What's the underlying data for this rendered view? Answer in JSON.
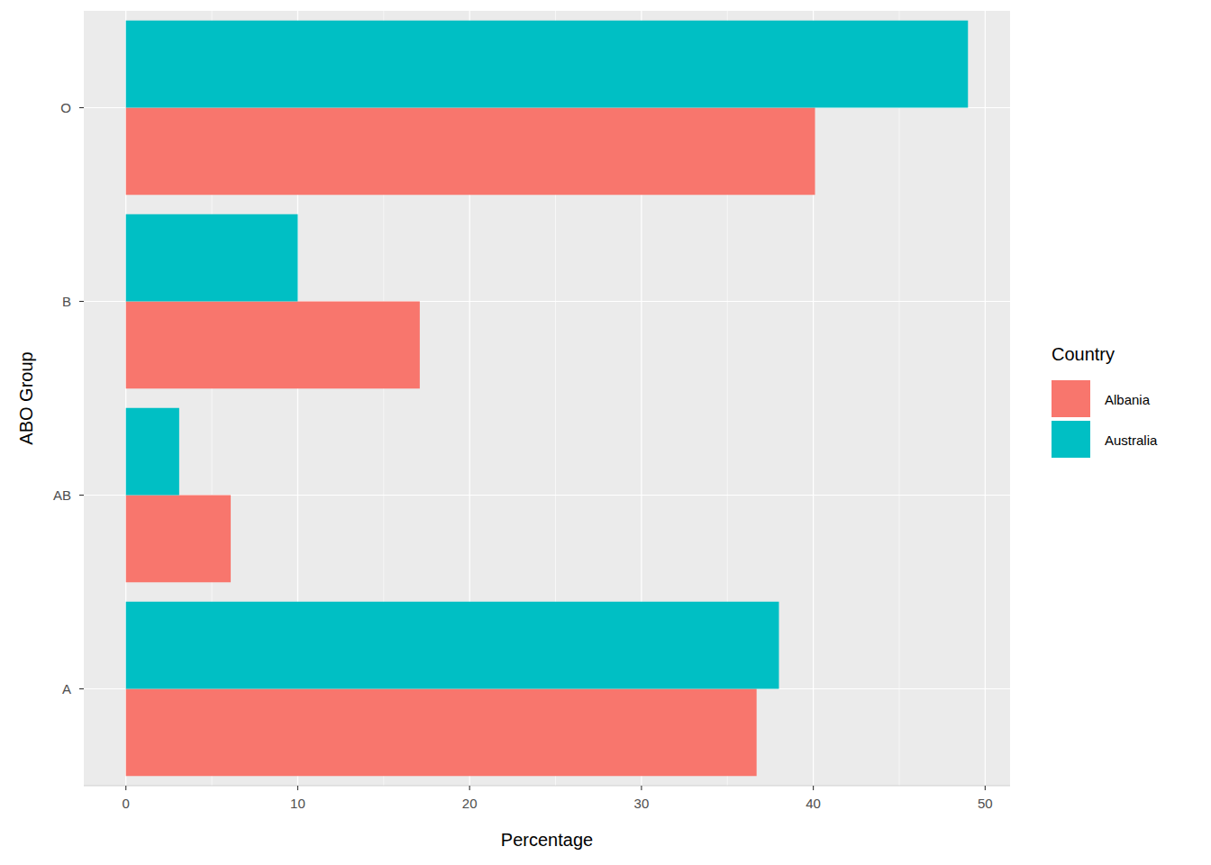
{
  "chart_data": {
    "type": "bar",
    "orientation": "horizontal",
    "x_label": "Percentage",
    "y_label": "ABO Group",
    "legend_title": "Country",
    "categories": [
      "A",
      "AB",
      "B",
      "O"
    ],
    "series": [
      {
        "name": "Albania",
        "color": "#F8766D",
        "values": [
          36.7,
          6.1,
          17.1,
          40.1
        ]
      },
      {
        "name": "Australia",
        "color": "#00BFC4",
        "values": [
          38,
          3.1,
          10,
          49
        ]
      }
    ],
    "xlim": [
      -2.45,
      51.45
    ],
    "xticks": [
      0,
      10,
      20,
      30,
      40,
      50
    ],
    "grid": true,
    "legend": "right"
  }
}
